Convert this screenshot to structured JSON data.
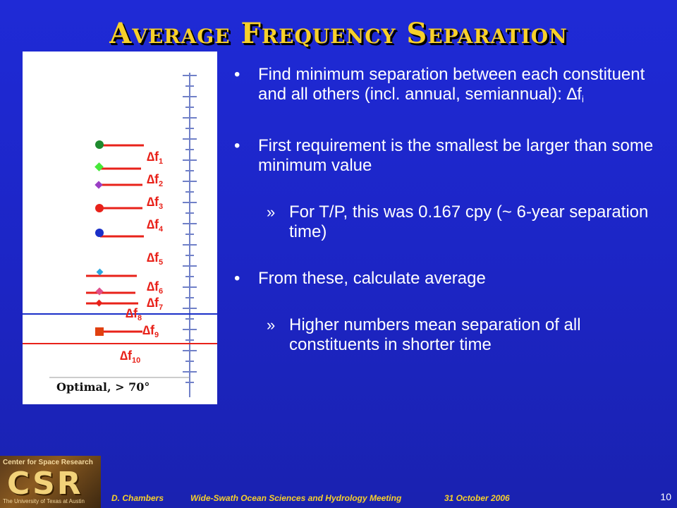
{
  "slide": {
    "title": "Average Frequency Separation",
    "page_number": "10"
  },
  "figure": {
    "caption": "Optimal, > 70°",
    "labels": [
      {
        "base": "∆f",
        "sub": "1"
      },
      {
        "base": "∆f",
        "sub": "2"
      },
      {
        "base": "∆f",
        "sub": "3"
      },
      {
        "base": "∆f",
        "sub": "4"
      },
      {
        "base": "∆f",
        "sub": "5"
      },
      {
        "base": "∆f",
        "sub": "6"
      },
      {
        "base": "∆f",
        "sub": "7"
      },
      {
        "base": "∆f",
        "sub": "8"
      },
      {
        "base": "∆f",
        "sub": "9"
      },
      {
        "base": "∆f",
        "sub": "10"
      }
    ],
    "colors": {
      "bar": "#e8221a",
      "green": "#1e8a2e",
      "lime": "#46e83a",
      "purple": "#9a3fc4",
      "red": "#e8221a",
      "blue": "#1a2fc8",
      "cyan": "#2aa6e0",
      "pink": "#e0508a",
      "orange_red": "#e04010",
      "axis": "#7080c8"
    }
  },
  "bullets": [
    {
      "level": 1,
      "text": "Find minimum separation between each constituent and all others (incl. annual, semiannual): ∆f",
      "sub": "i"
    },
    {
      "level": 1,
      "text": "First requirement is the smallest be larger than some minimum value"
    },
    {
      "level": 2,
      "text": "For T/P, this was 0.167 cpy (~ 6-year separation time)"
    },
    {
      "level": 1,
      "text": "From these, calculate average"
    },
    {
      "level": 2,
      "text": "Higher numbers mean separation of all constituents in shorter time"
    }
  ],
  "footer": {
    "author": "D. Chambers",
    "meeting": "Wide-Swath Ocean Sciences and Hydrology Meeting",
    "date": "31 October 2006",
    "logo_top": "Center for Space Research",
    "logo_big": "CSR",
    "logo_bottom": "The University of Texas at Austin"
  }
}
